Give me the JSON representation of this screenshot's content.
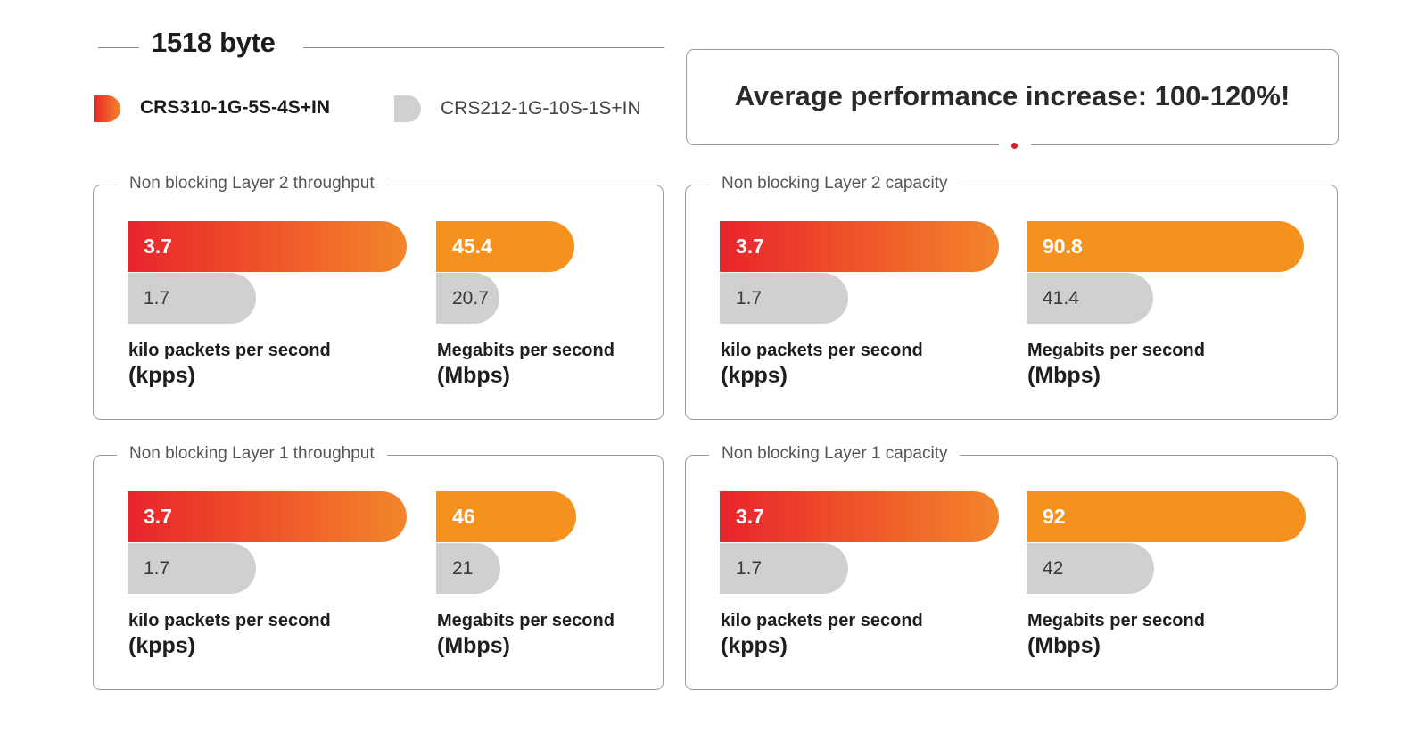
{
  "header": {
    "title": "1518 byte"
  },
  "legend": {
    "primary_label": "CRS310-1G-5S-4S+IN",
    "secondary_label": "CRS212-1G-10S-1S+IN"
  },
  "callout": {
    "text": "Average performance increase: 100-120%!"
  },
  "colors": {
    "primary_gradient_start": "#e8242d",
    "primary_gradient_end": "#f3862a",
    "orange": "#f5921e",
    "secondary_gray": "#d0d0d0",
    "accent_dot": "#d4202a"
  },
  "chart_data": [
    {
      "type": "bar",
      "title": "Non blocking Layer 2 throughput",
      "groups": [
        {
          "label": "kilo packets per second",
          "unit": "(kpps)",
          "series": [
            {
              "name": "CRS310-1G-5S-4S+IN",
              "value": 3.7,
              "label": "3.7"
            },
            {
              "name": "CRS212-1G-10S-1S+IN",
              "value": 1.7,
              "label": "1.7"
            }
          ]
        },
        {
          "label": "Megabits per second",
          "unit": "(Mbps)",
          "series": [
            {
              "name": "CRS310-1G-5S-4S+IN",
              "value": 45.4,
              "label": "45.4"
            },
            {
              "name": "CRS212-1G-10S-1S+IN",
              "value": 20.7,
              "label": "20.7"
            }
          ]
        }
      ]
    },
    {
      "type": "bar",
      "title": "Non blocking Layer 2 capacity",
      "groups": [
        {
          "label": "kilo packets per second",
          "unit": "(kpps)",
          "series": [
            {
              "name": "CRS310-1G-5S-4S+IN",
              "value": 3.7,
              "label": "3.7"
            },
            {
              "name": "CRS212-1G-10S-1S+IN",
              "value": 1.7,
              "label": "1.7"
            }
          ]
        },
        {
          "label": "Megabits per second",
          "unit": "(Mbps)",
          "series": [
            {
              "name": "CRS310-1G-5S-4S+IN",
              "value": 90.8,
              "label": "90.8"
            },
            {
              "name": "CRS212-1G-10S-1S+IN",
              "value": 41.4,
              "label": "41.4"
            }
          ]
        }
      ]
    },
    {
      "type": "bar",
      "title": "Non blocking Layer 1 throughput",
      "groups": [
        {
          "label": "kilo packets per second",
          "unit": "(kpps)",
          "series": [
            {
              "name": "CRS310-1G-5S-4S+IN",
              "value": 3.7,
              "label": "3.7"
            },
            {
              "name": "CRS212-1G-10S-1S+IN",
              "value": 1.7,
              "label": "1.7"
            }
          ]
        },
        {
          "label": "Megabits per second",
          "unit": "(Mbps)",
          "series": [
            {
              "name": "CRS310-1G-5S-4S+IN",
              "value": 46,
              "label": "46"
            },
            {
              "name": "CRS212-1G-10S-1S+IN",
              "value": 21,
              "label": "21"
            }
          ]
        }
      ]
    },
    {
      "type": "bar",
      "title": "Non blocking Layer 1 capacity",
      "groups": [
        {
          "label": "kilo packets per second",
          "unit": "(kpps)",
          "series": [
            {
              "name": "CRS310-1G-5S-4S+IN",
              "value": 3.7,
              "label": "3.7"
            },
            {
              "name": "CRS212-1G-10S-1S+IN",
              "value": 1.7,
              "label": "1.7"
            }
          ]
        },
        {
          "label": "Megabits per second",
          "unit": "(Mbps)",
          "series": [
            {
              "name": "CRS310-1G-5S-4S+IN",
              "value": 92,
              "label": "92"
            },
            {
              "name": "CRS212-1G-10S-1S+IN",
              "value": 42,
              "label": "42"
            }
          ]
        }
      ]
    }
  ]
}
